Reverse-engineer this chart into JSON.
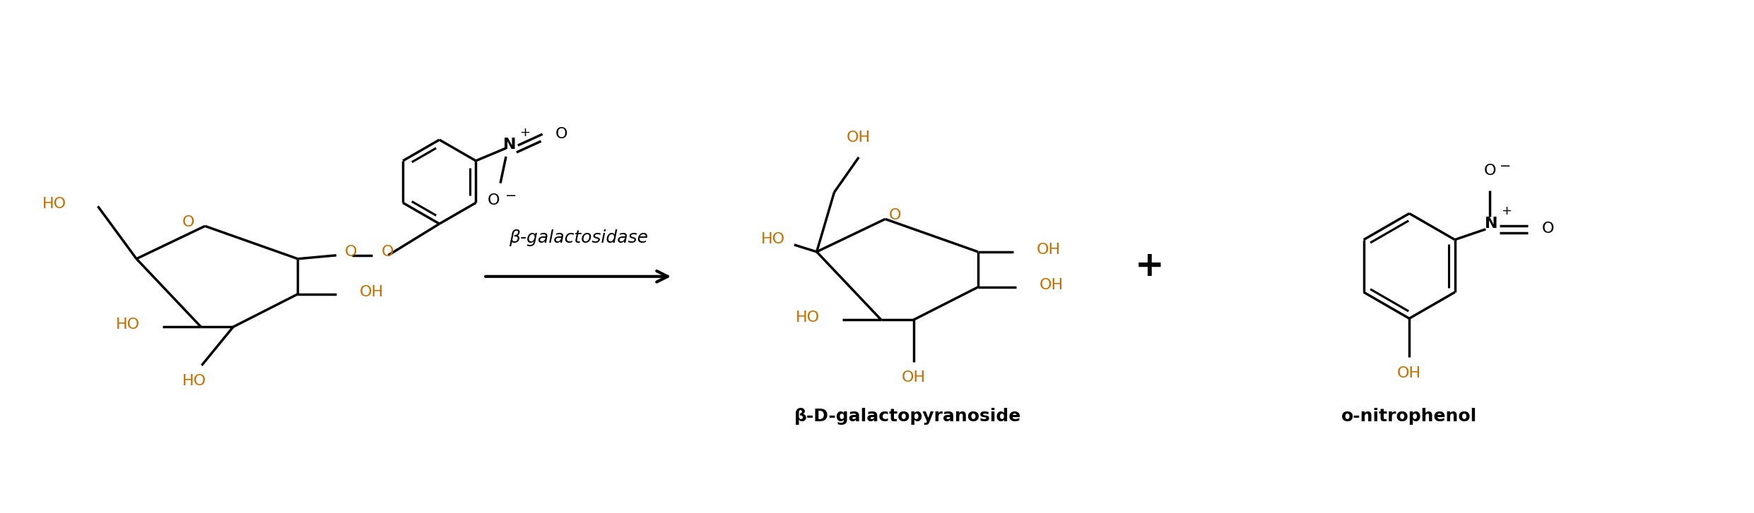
{
  "background_color": "#ffffff",
  "line_color": "#000000",
  "text_color": "#000000",
  "figsize": [
    24.82,
    7.27
  ],
  "dpi": 100,
  "enzyme_label": "β-galactosidase",
  "product1_label": "β-D-galactopyranoside",
  "product2_label": "o-nitrophenol",
  "plus_sign": "+",
  "line_width": 2.5,
  "font_size_label": 18,
  "font_size_atom": 16,
  "font_size_plus": 36,
  "font_size_small": 11,
  "ho_color": "#c87000",
  "oh_color": "#c87000",
  "o_color": "#c87000",
  "n_color": "#000000"
}
